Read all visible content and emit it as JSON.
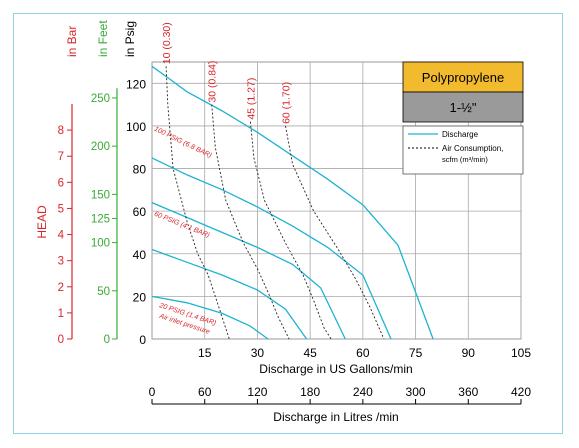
{
  "chart_data": {
    "type": "line",
    "material_label": "Polypropylene",
    "size_label": "1-½\"",
    "legend": {
      "discharge": "Discharge",
      "air_line1": "Air Consumption,",
      "air_line2": "scfm (m³/min)"
    },
    "head_label": "HEAD",
    "bar_axis": {
      "title": "in Bar",
      "ticks": [
        0,
        1,
        2,
        3,
        4,
        5,
        6,
        7,
        8
      ],
      "color": "#d9262b"
    },
    "feet_axis": {
      "title": "in Feet",
      "ticks": [
        0,
        50,
        100,
        125,
        150,
        200,
        250
      ],
      "color": "#3aaa35"
    },
    "psig_axis": {
      "title": "in Psig",
      "ticks": [
        0,
        20,
        40,
        60,
        80,
        100,
        120
      ],
      "ylim": [
        0,
        130
      ],
      "color": "#000000"
    },
    "x_gpm": {
      "label": "Discharge in US Gallons/min",
      "ticks": [
        15,
        30,
        45,
        60,
        75,
        90,
        105
      ],
      "xlim": [
        0,
        105
      ]
    },
    "x_lpm": {
      "label": "Discharge in Litres /min",
      "ticks": [
        0,
        60,
        120,
        180,
        240,
        300,
        360,
        420
      ],
      "xlim": [
        0,
        420
      ]
    },
    "discharge_curves": [
      {
        "points": [
          [
            0,
            128
          ],
          [
            5,
            122
          ],
          [
            10,
            116
          ],
          [
            20,
            107
          ],
          [
            30,
            97
          ],
          [
            40,
            86
          ],
          [
            50,
            75
          ],
          [
            60,
            63
          ],
          [
            70,
            44
          ],
          [
            80,
            0
          ]
        ]
      },
      {
        "points": [
          [
            0,
            85
          ],
          [
            10,
            77
          ],
          [
            20,
            70
          ],
          [
            30,
            62
          ],
          [
            40,
            53
          ],
          [
            50,
            43
          ],
          [
            60,
            30
          ],
          [
            68,
            0
          ]
        ]
      },
      {
        "points": [
          [
            0,
            64
          ],
          [
            10,
            57
          ],
          [
            20,
            50
          ],
          [
            30,
            43
          ],
          [
            40,
            35
          ],
          [
            48,
            24
          ],
          [
            55,
            0
          ]
        ]
      },
      {
        "points": [
          [
            0,
            42
          ],
          [
            10,
            36
          ],
          [
            20,
            30
          ],
          [
            30,
            23
          ],
          [
            38,
            14
          ],
          [
            44,
            0
          ]
        ]
      },
      {
        "points": [
          [
            0,
            20
          ],
          [
            10,
            17
          ],
          [
            20,
            12
          ],
          [
            28,
            6
          ],
          [
            33,
            0
          ]
        ]
      }
    ],
    "pressure_labels": [
      {
        "text": "100 PSIG (6.8 BAR)",
        "x": 0.5,
        "y": 98,
        "angle": 26
      },
      {
        "text": "60 PSIG (4.1 BAR)",
        "x": 0.5,
        "y": 58,
        "angle": 22
      },
      {
        "text": "20 PSIG (1.4 BAR)",
        "x": 2,
        "y": 15,
        "angle": 18
      },
      {
        "text": "Air inlet pressure",
        "x": 2,
        "y": 10,
        "angle": 18
      }
    ],
    "air_curves": [
      {
        "label": "10 (0.30)",
        "points": [
          [
            4,
            128
          ],
          [
            4.5,
            110
          ],
          [
            6,
            80
          ],
          [
            10,
            55
          ],
          [
            13,
            40
          ],
          [
            16,
            30
          ],
          [
            18,
            20
          ],
          [
            20,
            10
          ],
          [
            22,
            0
          ]
        ]
      },
      {
        "label": "30 (0.84)",
        "points": [
          [
            17,
            110
          ],
          [
            18,
            90
          ],
          [
            21,
            65
          ],
          [
            26,
            45
          ],
          [
            30,
            33
          ],
          [
            33,
            22
          ],
          [
            36,
            10
          ],
          [
            39,
            0
          ]
        ]
      },
      {
        "label": "45 (1.27)",
        "points": [
          [
            28,
            102
          ],
          [
            29,
            85
          ],
          [
            32,
            65
          ],
          [
            38,
            45
          ],
          [
            43,
            30
          ],
          [
            46,
            18
          ],
          [
            49,
            5
          ],
          [
            51,
            0
          ]
        ]
      },
      {
        "label": "60 (1.70)",
        "points": [
          [
            38,
            100
          ],
          [
            40,
            82
          ],
          [
            46,
            60
          ],
          [
            53,
            42
          ],
          [
            58,
            28
          ],
          [
            62,
            15
          ],
          [
            66,
            0
          ]
        ]
      }
    ]
  }
}
